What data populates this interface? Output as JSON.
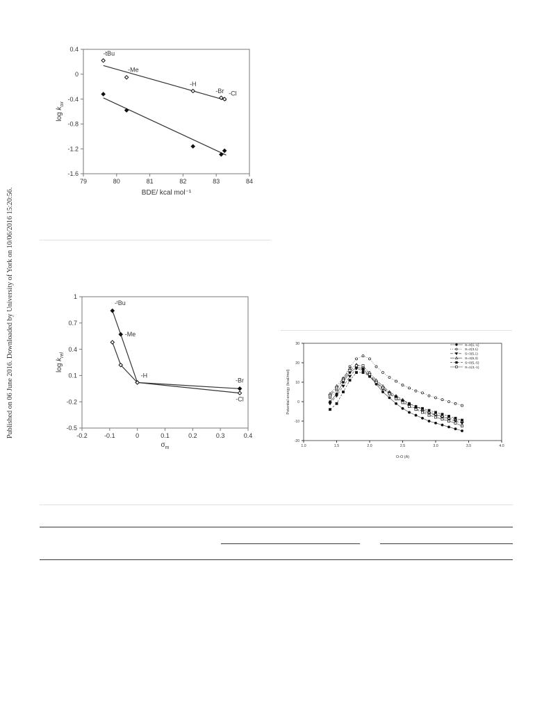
{
  "sidebar_text": "Published on 06 June 2016. Downloaded by University of York on 10/06/2016 15:20:56.",
  "chart_data": [
    {
      "type": "scatter",
      "xlabel": "BDE/ kcal mol⁻¹",
      "ylabel": "log k_ox",
      "xlim": [
        79,
        84
      ],
      "ylim": [
        -1.6,
        0.4
      ],
      "xticks": [
        "79",
        "80",
        "81",
        "82",
        "83",
        "84"
      ],
      "yticks": [
        "0.4",
        "0",
        "-0.4",
        "-0.8",
        "-1.2",
        "-1.6"
      ],
      "series": [
        {
          "marker": "open-diamond",
          "x": [
            79.6,
            80.3,
            82.3,
            83.15,
            83.25
          ],
          "y": [
            0.22,
            -0.05,
            -0.27,
            -0.38,
            -0.4
          ],
          "labels": [
            "-tBu",
            "-Me",
            "-H",
            "-Br",
            "-Cl"
          ],
          "fit": [
            [
              79.6,
              0.14
            ],
            [
              83.3,
              -0.42
            ]
          ]
        },
        {
          "marker": "filled-diamond",
          "x": [
            79.6,
            80.3,
            82.3,
            83.15,
            83.25
          ],
          "y": [
            -0.32,
            -0.58,
            -1.16,
            -1.29,
            -1.23
          ],
          "fit": [
            [
              79.6,
              -0.38
            ],
            [
              83.3,
              -1.3
            ]
          ]
        }
      ]
    },
    {
      "type": "line",
      "xlabel": "σm",
      "ylabel": "log k_rel",
      "xlim": [
        -0.2,
        0.4
      ],
      "ylim": [
        -0.5,
        1
      ],
      "xticks": [
        "-0.2",
        "-0.1",
        "0",
        "0.1",
        "0.2",
        "0.3",
        "0.4"
      ],
      "yticks": [
        "1",
        "0.7",
        "0.4",
        "0.1",
        "-0.2",
        "-0.5"
      ],
      "series": [
        {
          "marker": "filled-diamond",
          "x": [
            -0.09,
            -0.06,
            0.0,
            0.37
          ],
          "y": [
            0.84,
            0.57,
            0.02,
            -0.05
          ]
        },
        {
          "marker": "open-diamond",
          "x": [
            -0.09,
            -0.06,
            0.0,
            0.37
          ],
          "y": [
            0.48,
            0.22,
            0.02,
            -0.1
          ]
        }
      ],
      "labels": [
        {
          "text": "-ᵗBu",
          "x": -0.09,
          "y": 0.84
        },
        {
          "text": "-Me",
          "x": -0.06,
          "y": 0.57
        },
        {
          "text": "-H",
          "x": 0.0,
          "y": 0.02
        },
        {
          "text": "-Br",
          "x": 0.37,
          "y": -0.05
        },
        {
          "text": "-Cl",
          "x": 0.37,
          "y": -0.1
        }
      ]
    },
    {
      "type": "line",
      "xlabel": "O-O (A)",
      "ylabel": "Potential energy (kcal/mol)",
      "xlim": [
        1.0,
        4.0
      ],
      "ylim": [
        -20,
        30
      ],
      "xticks": [
        "1.0",
        "1.5",
        "2.0",
        "2.5",
        "3.0",
        "3.5",
        "4.0"
      ],
      "yticks": [
        "30",
        "20",
        "10",
        "0",
        "-10",
        "-20"
      ],
      "legend_position": "top-right",
      "x": [
        1.4,
        1.5,
        1.6,
        1.7,
        1.8,
        1.9,
        2.0,
        2.1,
        2.2,
        2.3,
        2.4,
        2.5,
        2.6,
        2.7,
        2.8,
        2.9,
        3.0,
        3.1,
        3.2,
        3.3,
        3.4
      ],
      "series": [
        {
          "name": "S=0(1,-1)",
          "marker": "filled-circle",
          "dash": "",
          "values": [
            0,
            4,
            10,
            15,
            17.5,
            17,
            13,
            9,
            5,
            2,
            -1,
            -3.5,
            -5.5,
            -7,
            -8.5,
            -10,
            -11,
            -12,
            -13,
            -14,
            -15
          ]
        },
        {
          "name": "S=2(3,1)",
          "marker": "open-circle",
          "dash": "1,2",
          "values": [
            2,
            6,
            12,
            18,
            22,
            23.5,
            22,
            18,
            15,
            12.5,
            10.5,
            8.5,
            7,
            5.5,
            4.5,
            3,
            2,
            1,
            0,
            -1,
            -2
          ]
        },
        {
          "name": "S=3(5,1)",
          "marker": "filled-down-triangle",
          "dash": "4,2",
          "values": [
            -1,
            3,
            8,
            13,
            17,
            16,
            13,
            9.5,
            6.5,
            4,
            2,
            0,
            -2,
            -3.5,
            -5,
            -6,
            -7,
            -8,
            -9,
            -10,
            -11
          ]
        },
        {
          "name": "S=4(5,3)",
          "marker": "open-up-triangle",
          "dash": "6,2,1,2",
          "values": [
            4,
            8,
            12,
            17,
            19,
            18,
            15,
            11,
            8,
            5,
            3,
            1,
            -1,
            -2.5,
            -4,
            -5.5,
            -6.5,
            -7.5,
            -8.5,
            -9,
            -10
          ]
        },
        {
          "name": "S=0(5,-5)",
          "marker": "filled-square",
          "dash": "3,2",
          "values": [
            -4,
            -1,
            5,
            11,
            15,
            15,
            13,
            10,
            7,
            4.5,
            2.5,
            0.5,
            -1,
            -2.5,
            -3.5,
            -4.5,
            -5.5,
            -6.5,
            -7.5,
            -8.5,
            -9.5
          ]
        },
        {
          "name": "S=1(3,-1)",
          "marker": "open-square",
          "dash": "8,3",
          "values": [
            3,
            7,
            11,
            16,
            18.5,
            18.5,
            14,
            10,
            7,
            4,
            1.5,
            -0.5,
            -2.5,
            -4,
            -5.5,
            -7,
            -8,
            -9,
            -10,
            -11,
            -12.5
          ]
        }
      ]
    }
  ]
}
